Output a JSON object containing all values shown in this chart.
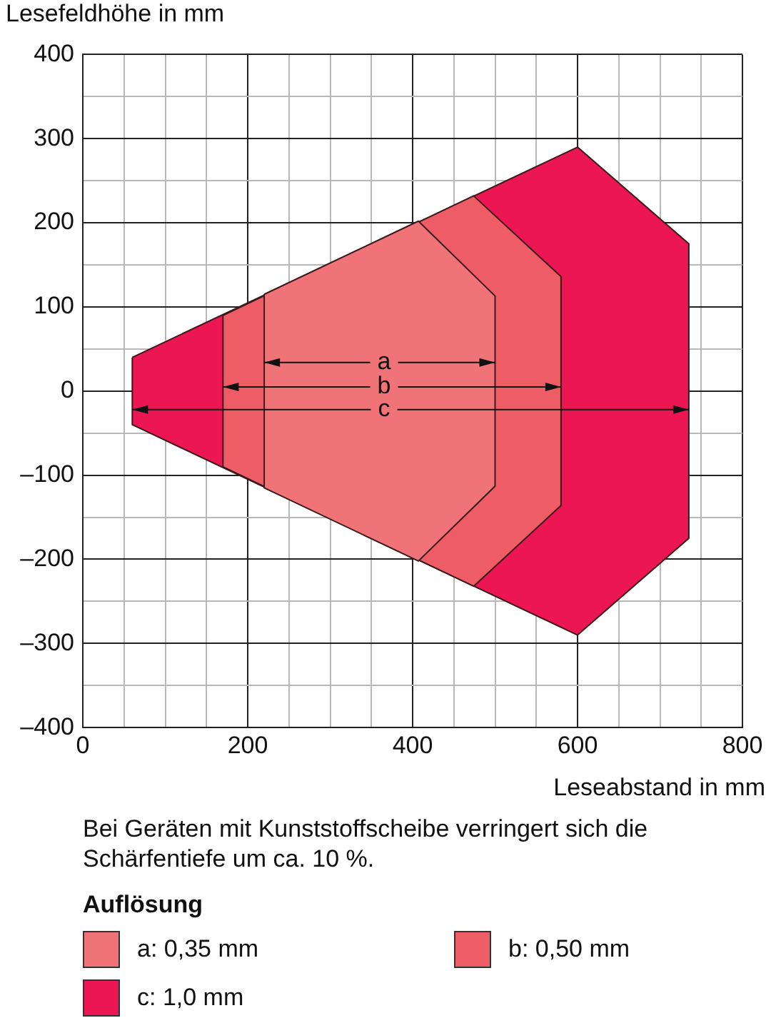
{
  "chart_data": {
    "type": "area",
    "xlabel": "Leseabstand in mm",
    "ylabel": "Lesefeldhöhe in mm",
    "legend_title": "Auflösung",
    "legend": "bottom",
    "grid": true,
    "xlim": [
      0,
      800
    ],
    "ylim": [
      -400,
      400
    ],
    "xticks": [
      0,
      {
        "value": 50,
        "label": null
      },
      {
        "value": 100,
        "label": null
      },
      {
        "value": 150,
        "label": null
      },
      200,
      {
        "value": 250,
        "label": null
      },
      {
        "value": 300,
        "label": null
      },
      {
        "value": 350,
        "label": null
      },
      400,
      {
        "value": 450,
        "label": null
      },
      {
        "value": 500,
        "label": null
      },
      {
        "value": 550,
        "label": null
      },
      600,
      {
        "value": 650,
        "label": null
      },
      {
        "value": 700,
        "label": null
      },
      {
        "value": 750,
        "label": null
      },
      800
    ],
    "yticks": [
      {
        "value": -400,
        "label": "–400"
      },
      {
        "value": -350,
        "label": null
      },
      {
        "value": -300,
        "label": "–300"
      },
      {
        "value": -250,
        "label": null
      },
      {
        "value": -200,
        "label": "–200"
      },
      {
        "value": -150,
        "label": null
      },
      {
        "value": -100,
        "label": "–100"
      },
      {
        "value": -50,
        "label": null
      },
      0,
      {
        "value": 50,
        "label": null
      },
      100,
      {
        "value": 150,
        "label": null
      },
      200,
      {
        "value": 250,
        "label": null
      },
      300,
      {
        "value": 350,
        "label": null
      },
      400
    ],
    "series": [
      {
        "name": "a: 0,35 mm",
        "color": "#f07477",
        "x": [
          220,
          407,
          500,
          500,
          407,
          220
        ],
        "values": [
          115,
          202,
          113,
          -113,
          -202,
          -115
        ]
      },
      {
        "name": "b: 0,50 mm",
        "color": "#ee5d66",
        "x": [
          170,
          474,
          580,
          580,
          474,
          170
        ],
        "values": [
          90,
          232,
          136,
          -136,
          -232,
          -90
        ]
      },
      {
        "name": "c: 1,0 mm",
        "color": "#ec1652",
        "x": [
          60,
          600,
          735,
          735,
          600,
          60
        ],
        "values": [
          40,
          290,
          175,
          -175,
          -290,
          -40
        ]
      }
    ],
    "annotations": [
      {
        "text": "a",
        "x": 500,
        "y": 34
      },
      {
        "text": "b",
        "x": 580,
        "y": 5
      },
      {
        "text": "c",
        "x": 735,
        "y": -22
      },
      "Bei Geräten mit Kunststoffscheibe verringert sich die Schärfentiefe um ca. 10 %."
    ]
  }
}
